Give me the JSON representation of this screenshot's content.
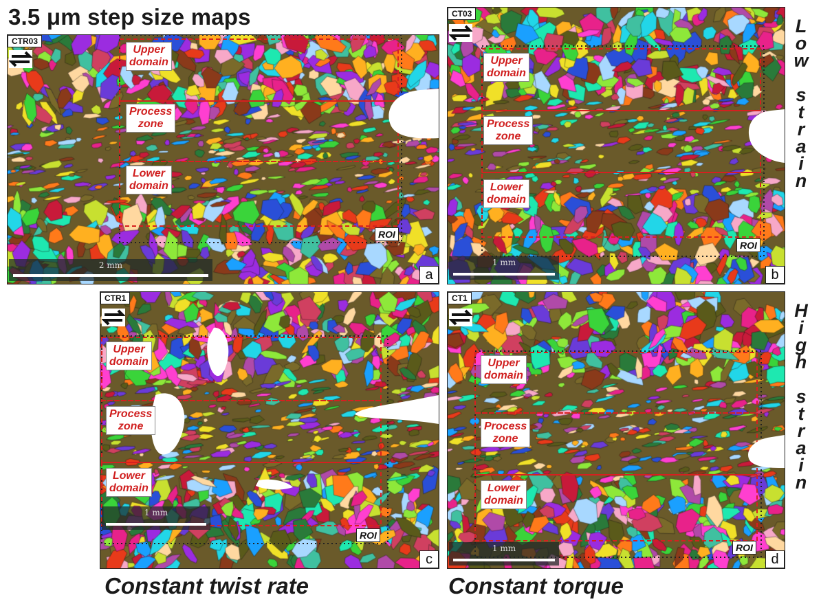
{
  "figure": {
    "title": "3.5 μm step size maps",
    "bottom_labels": [
      "Constant twist rate",
      "Constant torque"
    ],
    "side_labels": [
      {
        "letters": [
          "L",
          "o",
          "w",
          "",
          "s",
          "t",
          "r",
          "a",
          "i",
          "n"
        ]
      },
      {
        "letters": [
          "H",
          "i",
          "g",
          "h",
          "",
          "s",
          "t",
          "r",
          "a",
          "i",
          "n"
        ]
      }
    ],
    "panels": [
      {
        "id": "a",
        "sample": "CTR03",
        "scale": "2 mm",
        "roi": "ROI",
        "letter": "a",
        "seed": 11,
        "domains": {
          "upper": "Upper\ndomain",
          "process": "Process\nzone",
          "lower": "Lower\ndomain"
        }
      },
      {
        "id": "b",
        "sample": "CT03",
        "scale": "1 mm",
        "roi": "ROI",
        "letter": "b",
        "seed": 23,
        "domains": {
          "upper": "Upper\ndomain",
          "process": "Process\nzone",
          "lower": "Lower\ndomain"
        }
      },
      {
        "id": "c",
        "sample": "CTR1",
        "scale": "1 mm",
        "roi": "ROI",
        "letter": "c",
        "seed": 37,
        "domains": {
          "upper": "Upper\ndomain",
          "process": "Process\nzone",
          "lower": "Lower\ndomain"
        }
      },
      {
        "id": "d",
        "sample": "CT1",
        "scale": "1 mm",
        "roi": "ROI",
        "letter": "d",
        "seed": 53,
        "domains": {
          "upper": "Upper\ndomain",
          "process": "Process\nzone",
          "lower": "Lower\ndomain"
        }
      }
    ],
    "colors": {
      "domain_box": "#d62020",
      "roi_box": "#222222",
      "label_text": "#d01f1f"
    }
  }
}
